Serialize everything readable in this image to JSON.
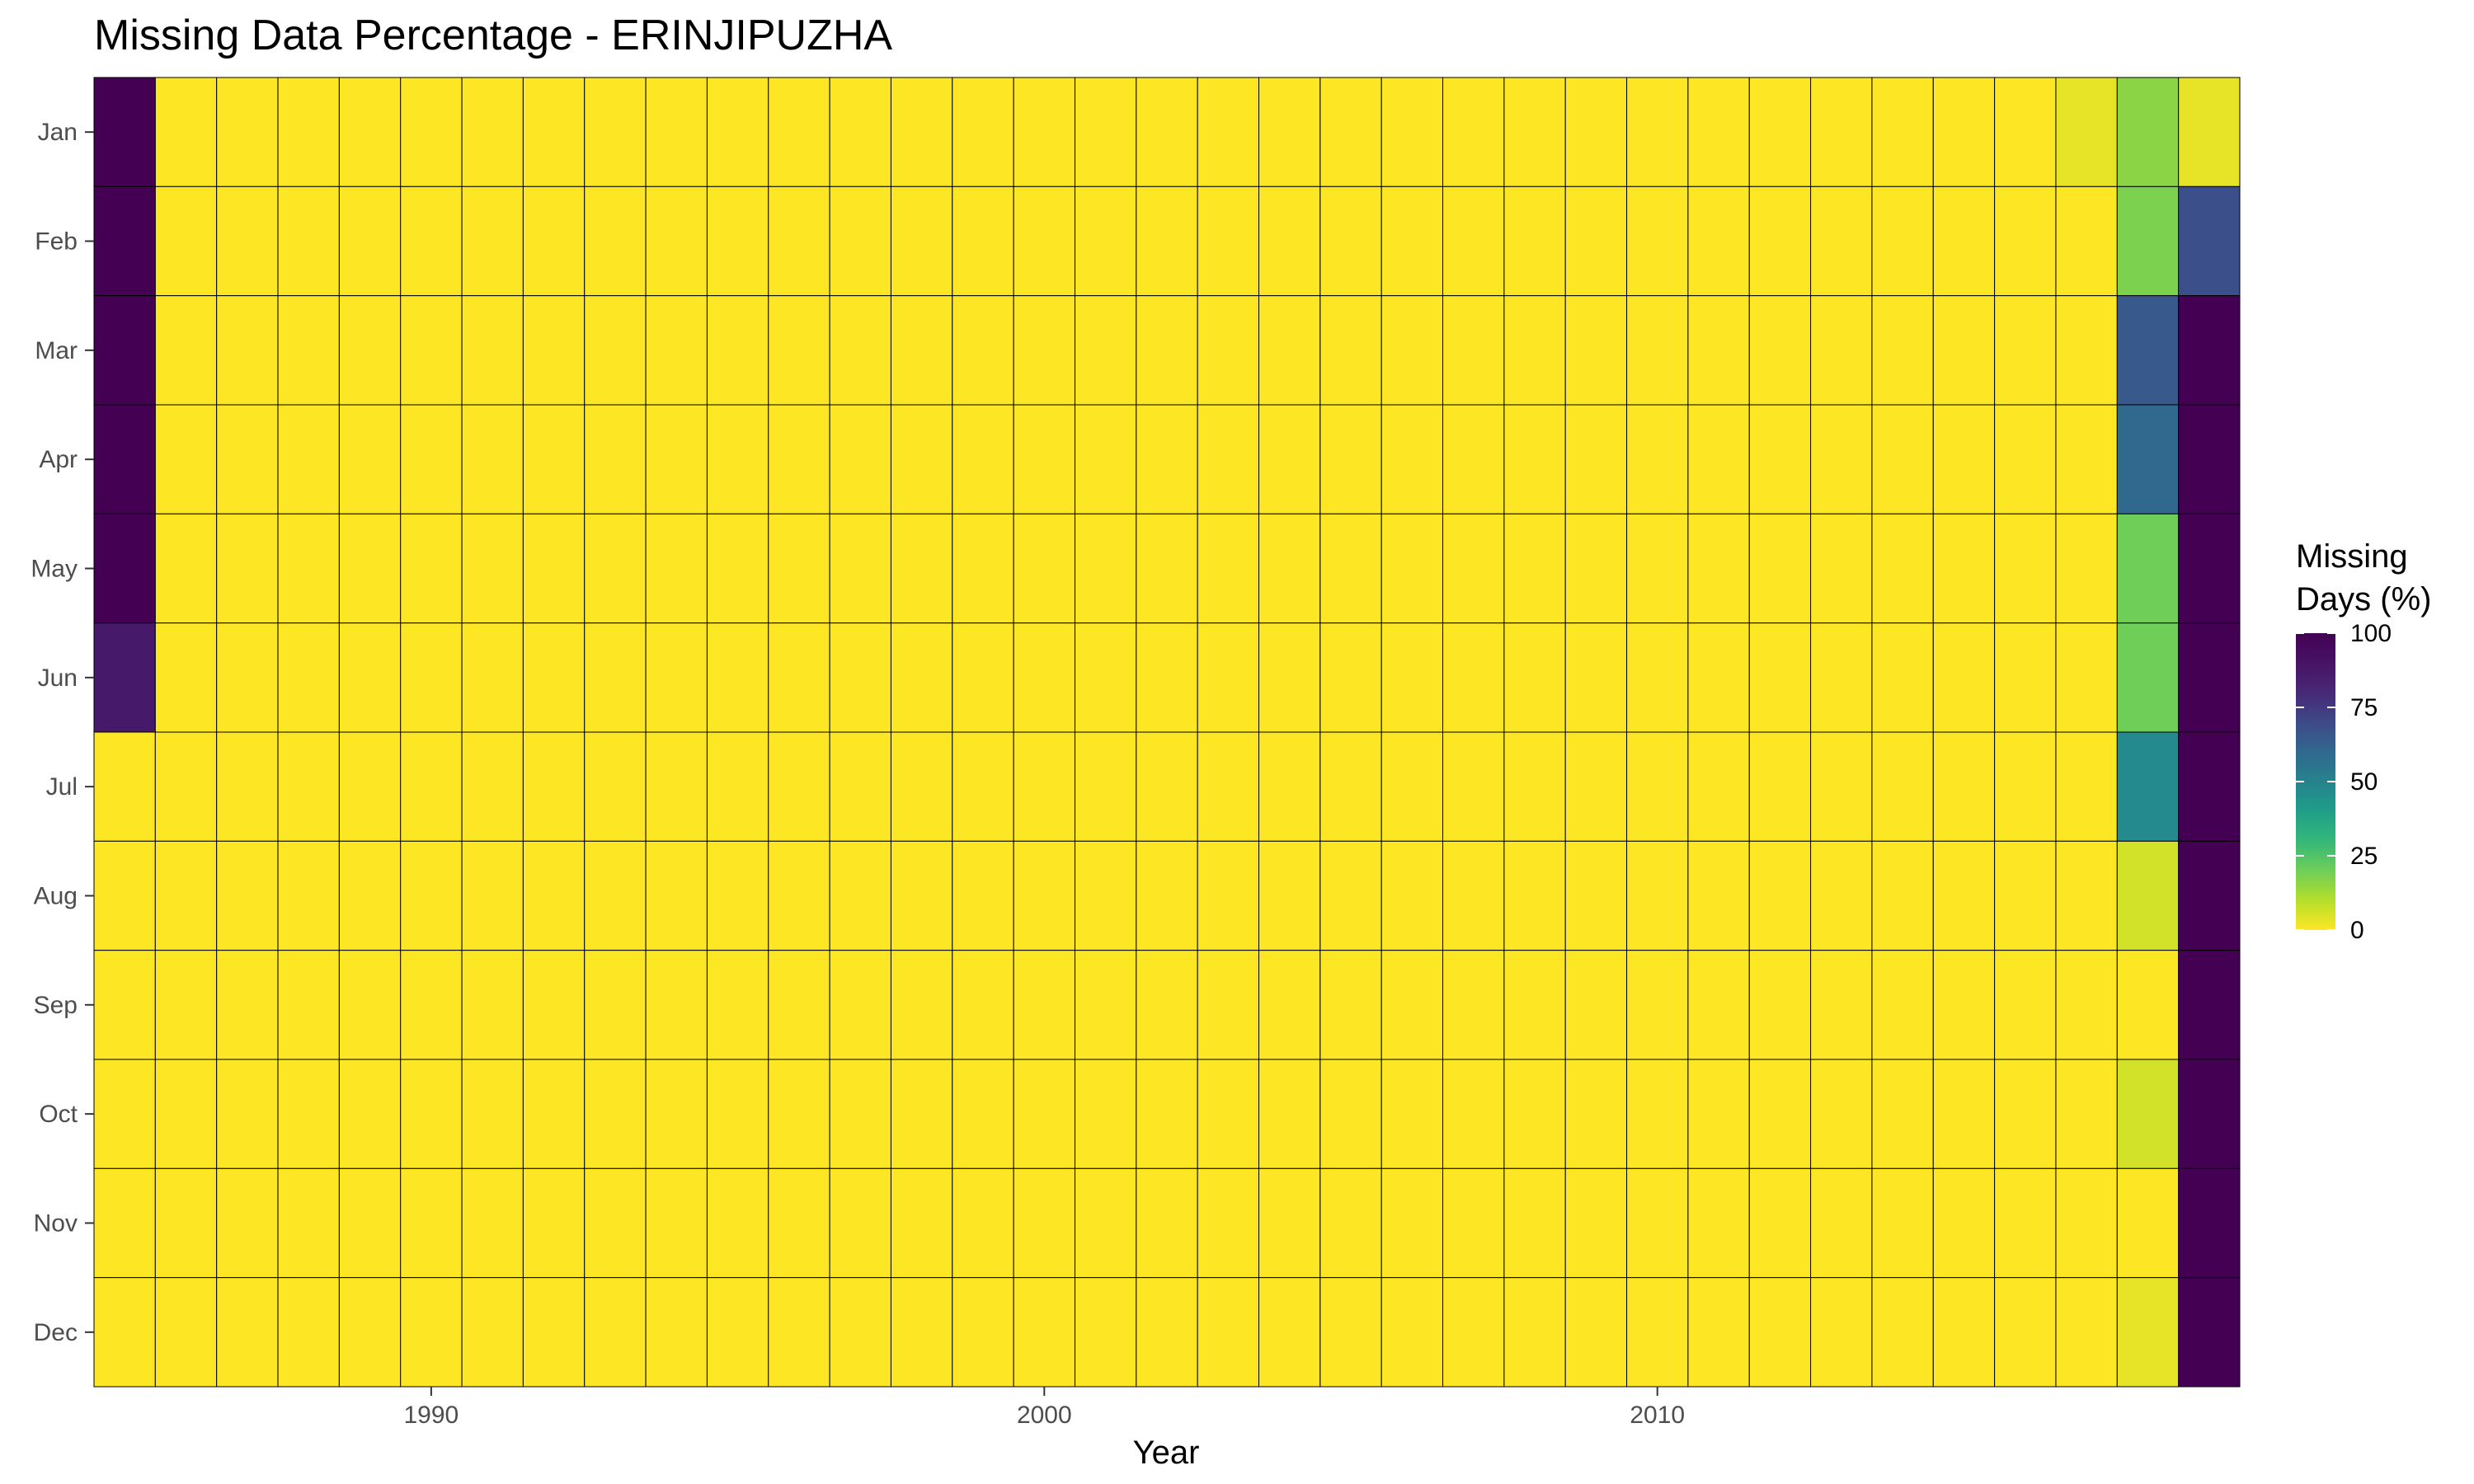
{
  "chart_data": {
    "type": "heatmap",
    "title": "Missing Data Percentage - ERINJIPUZHA",
    "xlabel": "Year",
    "ylabel": "",
    "x": [
      1985,
      1986,
      1987,
      1988,
      1989,
      1990,
      1991,
      1992,
      1993,
      1994,
      1995,
      1996,
      1997,
      1998,
      1999,
      2000,
      2001,
      2002,
      2003,
      2004,
      2005,
      2006,
      2007,
      2008,
      2009,
      2010,
      2011,
      2012,
      2013,
      2014,
      2015,
      2016,
      2017,
      2018,
      2019
    ],
    "x_ticks": [
      1990,
      2000,
      2010
    ],
    "y": [
      "Jan",
      "Feb",
      "Mar",
      "Apr",
      "May",
      "Jun",
      "Jul",
      "Aug",
      "Sep",
      "Oct",
      "Nov",
      "Dec"
    ],
    "value_range": [
      0,
      100
    ],
    "colormap": "viridis-reversed",
    "cell_border_color": "#000000",
    "grid": false,
    "legend": {
      "title_lines": [
        "Missing",
        "Days (%)"
      ],
      "ticks": [
        100,
        75,
        50,
        25,
        0
      ],
      "placement": "right"
    },
    "default_value": 0,
    "cells": [
      {
        "year": 1985,
        "month": "Jan",
        "value": 100
      },
      {
        "year": 1985,
        "month": "Feb",
        "value": 100
      },
      {
        "year": 1985,
        "month": "Mar",
        "value": 100
      },
      {
        "year": 1985,
        "month": "Apr",
        "value": 100
      },
      {
        "year": 1985,
        "month": "May",
        "value": 100
      },
      {
        "year": 1985,
        "month": "Jun",
        "value": 87
      },
      {
        "year": 2017,
        "month": "Jan",
        "value": 3
      },
      {
        "year": 2018,
        "month": "Jan",
        "value": 16
      },
      {
        "year": 2018,
        "month": "Feb",
        "value": 18
      },
      {
        "year": 2018,
        "month": "Mar",
        "value": 65
      },
      {
        "year": 2018,
        "month": "Apr",
        "value": 60
      },
      {
        "year": 2018,
        "month": "May",
        "value": 20
      },
      {
        "year": 2018,
        "month": "Jun",
        "value": 20
      },
      {
        "year": 2018,
        "month": "Jul",
        "value": 47
      },
      {
        "year": 2018,
        "month": "Aug",
        "value": 6
      },
      {
        "year": 2018,
        "month": "Sep",
        "value": 0
      },
      {
        "year": 2018,
        "month": "Oct",
        "value": 6
      },
      {
        "year": 2018,
        "month": "Nov",
        "value": 0
      },
      {
        "year": 2018,
        "month": "Dec",
        "value": 3
      },
      {
        "year": 2019,
        "month": "Jan",
        "value": 3
      },
      {
        "year": 2019,
        "month": "Feb",
        "value": 68
      },
      {
        "year": 2019,
        "month": "Mar",
        "value": 100
      },
      {
        "year": 2019,
        "month": "Apr",
        "value": 100
      },
      {
        "year": 2019,
        "month": "May",
        "value": 100
      },
      {
        "year": 2019,
        "month": "Jun",
        "value": 100
      },
      {
        "year": 2019,
        "month": "Jul",
        "value": 100
      },
      {
        "year": 2019,
        "month": "Aug",
        "value": 100
      },
      {
        "year": 2019,
        "month": "Sep",
        "value": 100
      },
      {
        "year": 2019,
        "month": "Oct",
        "value": 100
      },
      {
        "year": 2019,
        "month": "Nov",
        "value": 100
      },
      {
        "year": 2019,
        "month": "Dec",
        "value": 100
      }
    ]
  }
}
